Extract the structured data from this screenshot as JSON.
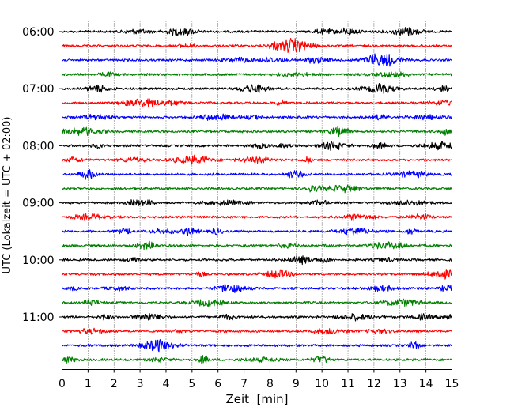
{
  "chart_data": {
    "type": "line",
    "title": "",
    "xlabel": "Zeit  [min]",
    "ylabel": "UTC (Lokalzeit = UTC + 02:00)",
    "xlim": [
      0,
      15
    ],
    "x_ticks": [
      "0",
      "1",
      "2",
      "3",
      "4",
      "5",
      "6",
      "7",
      "8",
      "9",
      "10",
      "11",
      "12",
      "13",
      "14",
      "15"
    ],
    "y_tick_labels": [
      "06:00",
      "07:00",
      "08:00",
      "09:00",
      "10:00",
      "11:00"
    ],
    "trace_start_times": [
      "06:00",
      "06:15",
      "06:30",
      "06:45",
      "07:00",
      "07:15",
      "07:30",
      "07:45",
      "08:00",
      "08:15",
      "08:30",
      "08:45",
      "09:00",
      "09:15",
      "09:30",
      "09:45",
      "10:00",
      "10:15",
      "10:30",
      "10:45",
      "11:00",
      "11:15",
      "11:30",
      "11:45"
    ],
    "trace_colors": [
      "#000000",
      "#ff0000",
      "#0000ff",
      "#007f00"
    ],
    "grid": "vertical-dotted",
    "legend": "none"
  }
}
